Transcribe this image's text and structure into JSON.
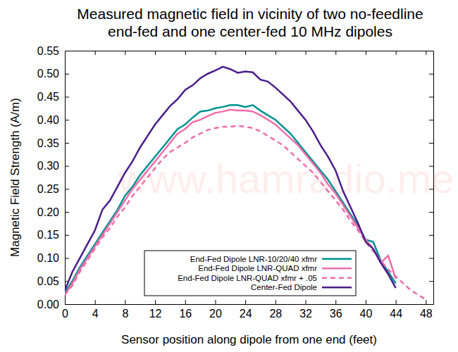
{
  "chart_data": {
    "type": "line",
    "title": "Measured magnetic field in vicinity of two no-feedline\nend-fed and one center-fed 10 MHz dipoles",
    "x_label": "Sensor position along dipole from one end (feet)",
    "y_label": "Magnetic Field Strength (A/m)",
    "annotations": [
      "www.hamradio.me"
    ],
    "xlim": [
      0,
      49
    ],
    "ylim": [
      0,
      0.55
    ],
    "xticks": [
      0,
      4,
      8,
      12,
      16,
      20,
      24,
      28,
      32,
      36,
      40,
      44,
      48
    ],
    "yticks": [
      {
        "value": 0,
        "label": "0.00"
      },
      {
        "value": 0.05,
        "label": "0.05"
      },
      {
        "value": 0.1,
        "label": "0.10"
      },
      {
        "value": 0.15,
        "label": "0.15"
      },
      {
        "value": 0.2,
        "label": "0.20"
      },
      {
        "value": 0.25,
        "label": "0.25"
      },
      {
        "value": 0.3,
        "label": "0.30"
      },
      {
        "value": 0.35,
        "label": "0.35"
      },
      {
        "value": 0.4,
        "label": "0.40"
      },
      {
        "value": 0.45,
        "label": "0.45"
      },
      {
        "value": 0.5,
        "label": "0.50"
      },
      {
        "value": 0.55,
        "label": "0.55"
      }
    ],
    "grid": false,
    "legend": "bottom",
    "series": [
      {
        "name": "End-Fed Dipole LNR-10/20/40 xfmr",
        "color": "#009393",
        "line_style": "solid",
        "x": [
          0,
          1,
          2,
          3,
          4,
          5,
          6,
          7,
          8,
          9,
          10,
          11,
          12,
          13,
          14,
          15,
          16,
          17,
          18,
          19,
          20,
          21,
          22,
          23,
          24,
          25,
          26,
          27,
          28,
          29,
          30,
          31,
          32,
          33,
          34,
          35,
          36,
          37,
          38,
          39,
          40,
          41,
          42,
          43,
          44
        ],
        "values": [
          0.025,
          0.05,
          0.08,
          0.105,
          0.13,
          0.155,
          0.18,
          0.205,
          0.235,
          0.255,
          0.28,
          0.3,
          0.32,
          0.34,
          0.36,
          0.38,
          0.39,
          0.405,
          0.418,
          0.42,
          0.425,
          0.428,
          0.432,
          0.432,
          0.428,
          0.432,
          0.42,
          0.41,
          0.4,
          0.385,
          0.37,
          0.35,
          0.33,
          0.31,
          0.29,
          0.27,
          0.245,
          0.22,
          0.195,
          0.17,
          0.14,
          0.135,
          0.095,
          0.07,
          0.045
        ]
      },
      {
        "name": "End-Fed Dipole LNR-QUAD xfmr",
        "color": "#f06eaa",
        "line_style": "solid",
        "x": [
          0,
          1,
          2,
          3,
          4,
          5,
          6,
          7,
          8,
          9,
          10,
          11,
          12,
          13,
          14,
          15,
          16,
          17,
          18,
          19,
          20,
          21,
          22,
          23,
          24,
          25,
          26,
          27,
          28,
          29,
          30,
          31,
          32,
          33,
          34,
          35,
          36,
          37,
          38,
          39,
          40,
          41,
          42,
          43,
          44
        ],
        "values": [
          0.02,
          0.045,
          0.075,
          0.1,
          0.125,
          0.15,
          0.175,
          0.2,
          0.225,
          0.25,
          0.27,
          0.29,
          0.31,
          0.33,
          0.35,
          0.37,
          0.38,
          0.395,
          0.4,
          0.408,
          0.415,
          0.418,
          0.422,
          0.42,
          0.42,
          0.418,
          0.41,
          0.4,
          0.39,
          0.375,
          0.36,
          0.345,
          0.325,
          0.305,
          0.285,
          0.26,
          0.24,
          0.215,
          0.19,
          0.165,
          0.14,
          0.12,
          0.09,
          0.105,
          0.055
        ]
      },
      {
        "name": "End-Fed Dipole LNR-QUAD xfmr + .05",
        "color": "#f06eaa",
        "line_style": "dashed",
        "x": [
          0,
          1,
          2,
          3,
          4,
          5,
          6,
          7,
          8,
          9,
          10,
          11,
          12,
          13,
          14,
          15,
          16,
          17,
          18,
          19,
          20,
          21,
          22,
          23,
          24,
          25,
          26,
          27,
          28,
          29,
          30,
          31,
          32,
          33,
          34,
          35,
          36,
          37,
          38,
          39,
          40,
          41,
          42,
          43,
          44,
          45,
          46,
          47,
          48
        ],
        "values": [
          0.02,
          0.04,
          0.07,
          0.095,
          0.12,
          0.145,
          0.165,
          0.19,
          0.21,
          0.235,
          0.255,
          0.275,
          0.295,
          0.315,
          0.33,
          0.34,
          0.35,
          0.362,
          0.37,
          0.378,
          0.382,
          0.385,
          0.385,
          0.387,
          0.385,
          0.382,
          0.375,
          0.365,
          0.355,
          0.345,
          0.33,
          0.315,
          0.3,
          0.285,
          0.265,
          0.245,
          0.225,
          0.205,
          0.18,
          0.16,
          0.135,
          0.115,
          0.095,
          0.075,
          0.06,
          0.045,
          0.03,
          0.02,
          0.01
        ]
      },
      {
        "name": "Center-Fed Dipole",
        "color": "#4b1d8c",
        "line_style": "solid",
        "x": [
          0,
          1,
          2,
          3,
          4,
          5,
          6,
          7,
          8,
          9,
          10,
          11,
          12,
          13,
          14,
          15,
          16,
          17,
          18,
          19,
          20,
          21,
          22,
          23,
          24,
          25,
          26,
          27,
          28,
          29,
          30,
          31,
          32,
          33,
          34,
          35,
          36,
          37,
          38,
          39,
          40,
          41,
          42,
          43,
          44
        ],
        "values": [
          0.03,
          0.07,
          0.1,
          0.13,
          0.16,
          0.205,
          0.225,
          0.255,
          0.285,
          0.31,
          0.34,
          0.365,
          0.39,
          0.41,
          0.43,
          0.445,
          0.465,
          0.475,
          0.49,
          0.5,
          0.507,
          0.515,
          0.51,
          0.502,
          0.505,
          0.503,
          0.487,
          0.483,
          0.47,
          0.455,
          0.44,
          0.42,
          0.4,
          0.375,
          0.345,
          0.32,
          0.29,
          0.245,
          0.21,
          0.175,
          0.135,
          0.12,
          0.09,
          0.065,
          0.035
        ]
      }
    ]
  }
}
